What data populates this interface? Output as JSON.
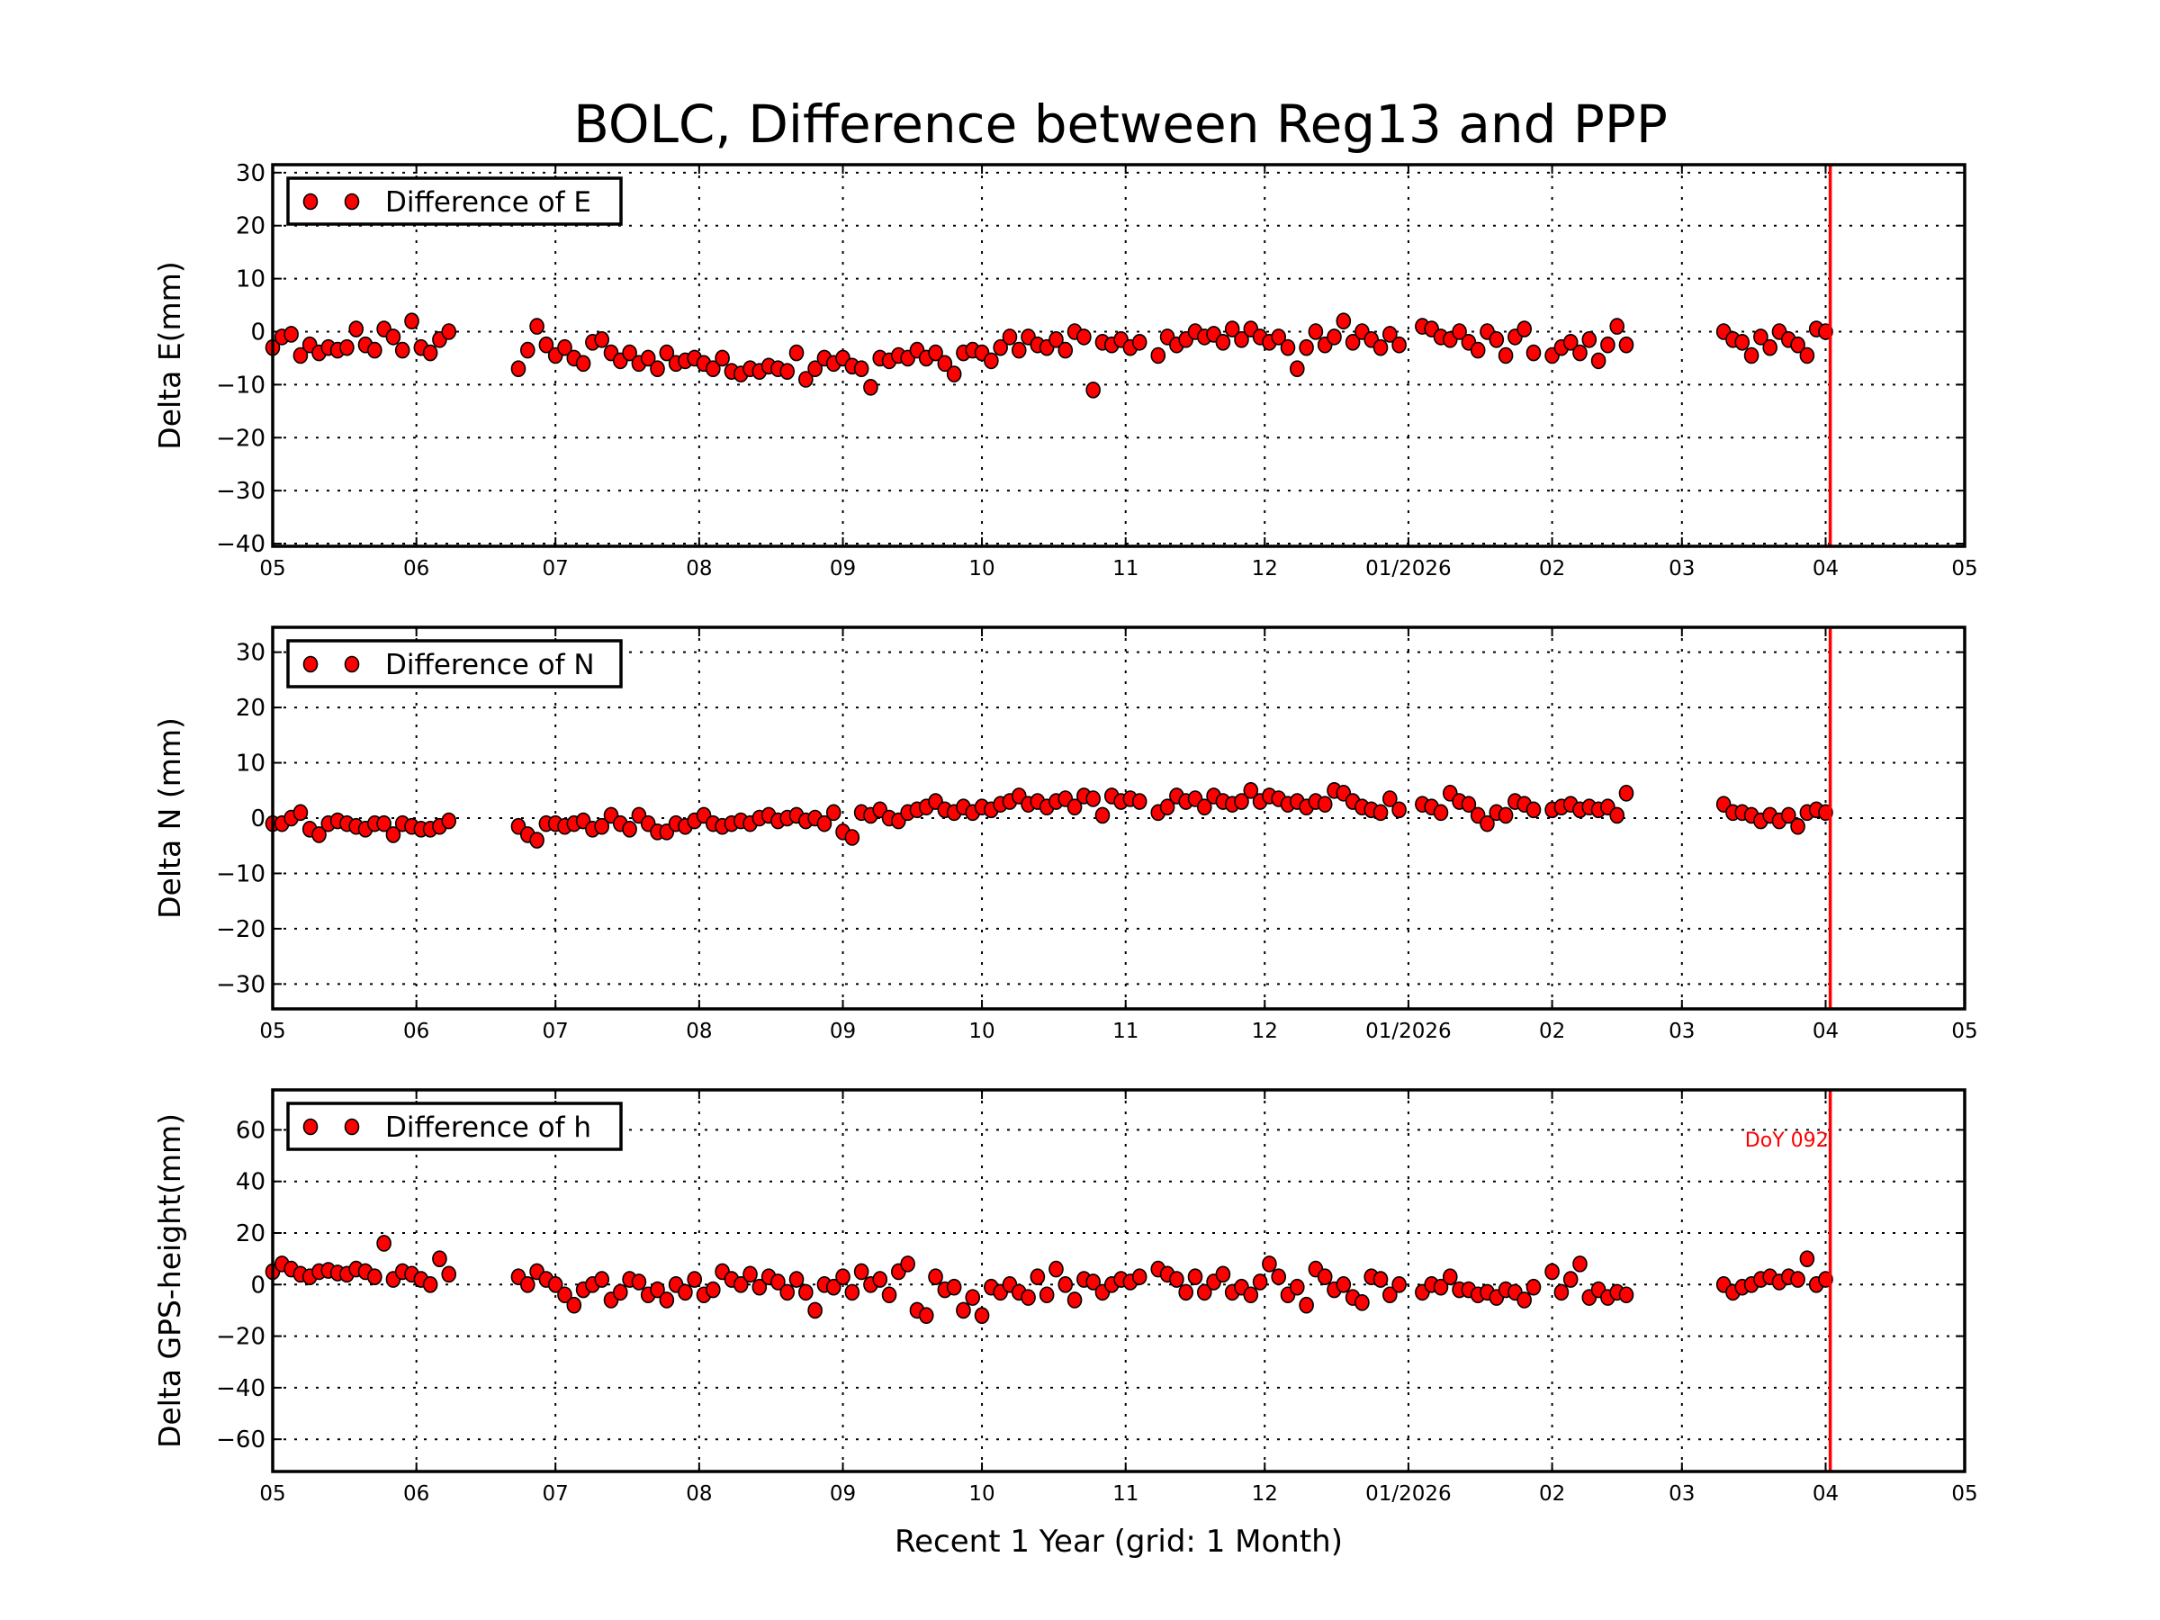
{
  "chart_data": {
    "type": "scatter",
    "title": "BOLC, Difference between Reg13 and PPP",
    "xlabel": "Recent 1 Year (grid: 1 Month)",
    "xlim": [
      "2025-05-01",
      "2026-05-01"
    ],
    "xticks": [
      {
        "date": "2025-05-01",
        "label": "05"
      },
      {
        "date": "2025-06-01",
        "label": "06"
      },
      {
        "date": "2025-07-01",
        "label": "07"
      },
      {
        "date": "2025-08-01",
        "label": "08"
      },
      {
        "date": "2025-09-01",
        "label": "09"
      },
      {
        "date": "2025-10-01",
        "label": "10"
      },
      {
        "date": "2025-11-01",
        "label": "11"
      },
      {
        "date": "2025-12-01",
        "label": "12"
      },
      {
        "date": "2026-01-01",
        "label": "01/2026"
      },
      {
        "date": "2026-02-01",
        "label": "02"
      },
      {
        "date": "2026-03-01",
        "label": "03"
      },
      {
        "date": "2026-04-01",
        "label": "04"
      },
      {
        "date": "2026-05-01",
        "label": "05"
      }
    ],
    "grid": true,
    "legend_position": "top-left",
    "marker_color": "#ff0000",
    "reference_line": {
      "date": "2026-04-02",
      "color": "#ff0000",
      "label": "DoY 092"
    },
    "x": [
      "2025-05-01",
      "2025-05-03",
      "2025-05-05",
      "2025-05-07",
      "2025-05-09",
      "2025-05-11",
      "2025-05-13",
      "2025-05-15",
      "2025-05-17",
      "2025-05-19",
      "2025-05-21",
      "2025-05-23",
      "2025-05-25",
      "2025-05-27",
      "2025-05-29",
      "2025-05-31",
      "2025-06-02",
      "2025-06-04",
      "2025-06-06",
      "2025-06-08",
      "2025-06-23",
      "2025-06-25",
      "2025-06-27",
      "2025-06-29",
      "2025-07-01",
      "2025-07-03",
      "2025-07-05",
      "2025-07-07",
      "2025-07-09",
      "2025-07-11",
      "2025-07-13",
      "2025-07-15",
      "2025-07-17",
      "2025-07-19",
      "2025-07-21",
      "2025-07-23",
      "2025-07-25",
      "2025-07-27",
      "2025-07-29",
      "2025-07-31",
      "2025-08-02",
      "2025-08-04",
      "2025-08-06",
      "2025-08-08",
      "2025-08-10",
      "2025-08-12",
      "2025-08-14",
      "2025-08-16",
      "2025-08-18",
      "2025-08-20",
      "2025-08-22",
      "2025-08-24",
      "2025-08-26",
      "2025-08-28",
      "2025-08-30",
      "2025-09-01",
      "2025-09-03",
      "2025-09-05",
      "2025-09-07",
      "2025-09-09",
      "2025-09-11",
      "2025-09-13",
      "2025-09-15",
      "2025-09-17",
      "2025-09-19",
      "2025-09-21",
      "2025-09-23",
      "2025-09-25",
      "2025-09-27",
      "2025-09-29",
      "2025-10-01",
      "2025-10-03",
      "2025-10-05",
      "2025-10-07",
      "2025-10-09",
      "2025-10-11",
      "2025-10-13",
      "2025-10-15",
      "2025-10-17",
      "2025-10-19",
      "2025-10-21",
      "2025-10-23",
      "2025-10-25",
      "2025-10-27",
      "2025-10-29",
      "2025-10-31",
      "2025-11-02",
      "2025-11-04",
      "2025-11-08",
      "2025-11-10",
      "2025-11-12",
      "2025-11-14",
      "2025-11-16",
      "2025-11-18",
      "2025-11-20",
      "2025-11-22",
      "2025-11-24",
      "2025-11-26",
      "2025-11-28",
      "2025-11-30",
      "2025-12-02",
      "2025-12-04",
      "2025-12-06",
      "2025-12-08",
      "2025-12-10",
      "2025-12-12",
      "2025-12-14",
      "2025-12-16",
      "2025-12-18",
      "2025-12-20",
      "2025-12-22",
      "2025-12-24",
      "2025-12-26",
      "2025-12-28",
      "2025-12-30",
      "2026-01-04",
      "2026-01-06",
      "2026-01-08",
      "2026-01-10",
      "2026-01-12",
      "2026-01-14",
      "2026-01-16",
      "2026-01-18",
      "2026-01-20",
      "2026-01-22",
      "2026-01-24",
      "2026-01-26",
      "2026-01-28",
      "2026-02-01",
      "2026-02-03",
      "2026-02-05",
      "2026-02-07",
      "2026-02-09",
      "2026-02-11",
      "2026-02-13",
      "2026-02-15",
      "2026-02-17",
      "2026-03-10",
      "2026-03-12",
      "2026-03-14",
      "2026-03-16",
      "2026-03-18",
      "2026-03-20",
      "2026-03-22",
      "2026-03-24",
      "2026-03-26",
      "2026-03-28",
      "2026-03-30",
      "2026-04-01"
    ],
    "panels": [
      {
        "ylabel": "Delta E(mm)",
        "legend": "Difference of E",
        "ylim": [
          -40.5,
          31.5
        ],
        "yticks": [
          -40,
          -30,
          -20,
          -10,
          0,
          10,
          20,
          30
        ],
        "ytick_labels": [
          "−40",
          "−30",
          "−20",
          "−10",
          "0",
          "10",
          "20",
          "30"
        ],
        "values": [
          -3,
          -1,
          -0.5,
          -4.5,
          -2.5,
          -4,
          -3,
          -3.5,
          -3,
          0.5,
          -2.5,
          -3.5,
          0.5,
          -1,
          -3.5,
          2,
          -3,
          -4,
          -1.5,
          0,
          -7,
          -3.5,
          1,
          -2.5,
          -4.5,
          -3,
          -5,
          -6,
          -2,
          -1.5,
          -4,
          -5.5,
          -4,
          -6,
          -5,
          -7,
          -4,
          -6,
          -5.5,
          -5,
          -6,
          -7,
          -5,
          -7.5,
          -8,
          -7,
          -7.5,
          -6.5,
          -7,
          -7.5,
          -4,
          -9,
          -7,
          -5,
          -6,
          -5,
          -6.5,
          -7,
          -10.5,
          -5,
          -5.5,
          -4.5,
          -5,
          -3.5,
          -5,
          -4,
          -6,
          -8,
          -4,
          -3.5,
          -4,
          -5.5,
          -3,
          -1,
          -3.5,
          -1,
          -2.5,
          -3,
          -1.5,
          -3.5,
          0,
          -1,
          -11,
          -2,
          -2.5,
          -1.5,
          -3,
          -2,
          -4.5,
          -1,
          -2.5,
          -1.5,
          0,
          -1,
          -0.5,
          -2,
          0.5,
          -1.5,
          0.5,
          -1,
          -2,
          -1,
          -3,
          -7,
          -3,
          0,
          -2.5,
          -1,
          2,
          -2,
          0,
          -1.5,
          -3,
          -0.5,
          -2.5,
          1,
          0.5,
          -1,
          -1.5,
          0,
          -2,
          -3.5,
          0,
          -1.5,
          -4.5,
          -1,
          0.5,
          -4,
          -4.5,
          -3,
          -2,
          -4,
          -1.5,
          -5.5,
          -2.5,
          1,
          -2.5,
          0,
          -1.5,
          -2,
          -4.5,
          -1,
          -3,
          0,
          -1.5,
          -2.5,
          -4.5,
          0.5,
          0
        ]
      },
      {
        "ylabel": "Delta N (mm)",
        "legend": "Difference of N",
        "ylim": [
          -34.5,
          34.5
        ],
        "yticks": [
          -30,
          -20,
          -10,
          0,
          10,
          20,
          30
        ],
        "ytick_labels": [
          "−30",
          "−20",
          "−10",
          "0",
          "10",
          "20",
          "30"
        ],
        "values": [
          -1,
          -1,
          0,
          1,
          -2,
          -3,
          -1,
          -0.5,
          -1,
          -1.5,
          -2,
          -1,
          -1,
          -3,
          -1,
          -1.5,
          -2,
          -2,
          -1.5,
          -0.5,
          -1.5,
          -3,
          -4,
          -1,
          -1,
          -1.5,
          -1,
          -0.5,
          -2,
          -1.5,
          0.5,
          -1,
          -2,
          0.5,
          -1,
          -2.5,
          -2.5,
          -1,
          -1.5,
          -0.5,
          0.5,
          -1,
          -1.5,
          -1,
          -0.5,
          -1,
          0,
          0.5,
          -0.5,
          0,
          0.5,
          -0.5,
          0,
          -1,
          1,
          -2.5,
          -3.5,
          1,
          0.5,
          1.5,
          0,
          -0.5,
          1,
          1.5,
          2,
          3,
          1.5,
          1,
          2,
          1,
          2,
          1.5,
          2.5,
          3,
          4,
          2.5,
          3,
          2,
          3,
          3.5,
          2,
          4,
          3.5,
          0.5,
          4,
          3,
          3.5,
          3,
          1,
          2,
          4,
          3,
          3.5,
          2,
          4,
          3,
          2.5,
          3,
          5,
          3,
          4,
          3.5,
          2.5,
          3,
          2,
          3,
          2.5,
          5,
          4.5,
          3,
          2,
          1.5,
          1,
          3.5,
          1.5,
          2.5,
          2,
          1,
          4.5,
          3,
          2.5,
          0.5,
          -1,
          1,
          0.5,
          3,
          2.5,
          1.5,
          1.5,
          2,
          2.5,
          1.5,
          2,
          1.5,
          2,
          0.5,
          4.5,
          2.5,
          1,
          1,
          0.5,
          -0.5,
          0.5,
          -0.5,
          0.5,
          -1.5,
          1,
          1.5,
          1
        ]
      },
      {
        "ylabel": "Delta GPS-height(mm)",
        "legend": "Difference of h",
        "ylim": [
          -72.5,
          75.5
        ],
        "yticks": [
          -60,
          -40,
          -20,
          0,
          20,
          40,
          60
        ],
        "ytick_labels": [
          "−60",
          "−40",
          "−20",
          "0",
          "20",
          "40",
          "60"
        ],
        "values": [
          5,
          8,
          6,
          4,
          3,
          5,
          5.5,
          4.5,
          4,
          6,
          5,
          3,
          16,
          2,
          5,
          4,
          2,
          0,
          10,
          4,
          3,
          0,
          5,
          2,
          0,
          -4,
          -8,
          -2,
          0,
          2,
          -6,
          -3,
          2,
          1,
          -4,
          -2,
          -6,
          0,
          -3,
          2,
          -4,
          -2,
          5,
          2,
          0,
          4,
          -1,
          3,
          1,
          -3,
          2,
          -3,
          -10,
          0,
          -1,
          3,
          -3,
          5,
          0,
          2,
          -4,
          5,
          8,
          -10,
          -12,
          3,
          -2,
          -1,
          -10,
          -5,
          -12,
          -1,
          -3,
          0,
          -3,
          -5,
          3,
          -4,
          6,
          0,
          -6,
          2,
          1,
          -3,
          0,
          2,
          1,
          3,
          6,
          4,
          2,
          -3,
          3,
          -3,
          1,
          4,
          -3,
          -1,
          -4,
          1,
          8,
          3,
          -4,
          -1,
          -8,
          6,
          3,
          -2,
          0,
          -5,
          -7,
          3,
          2,
          -4,
          0,
          -3,
          0,
          -1,
          3,
          -2,
          -2,
          -4,
          -3,
          -5,
          -2,
          -3,
          -6,
          -1,
          5,
          -3,
          2,
          8,
          -5,
          -2,
          -5,
          -3,
          -4,
          0,
          -3,
          -1,
          0,
          2,
          3,
          1,
          3,
          2,
          10,
          0,
          2
        ]
      }
    ]
  }
}
